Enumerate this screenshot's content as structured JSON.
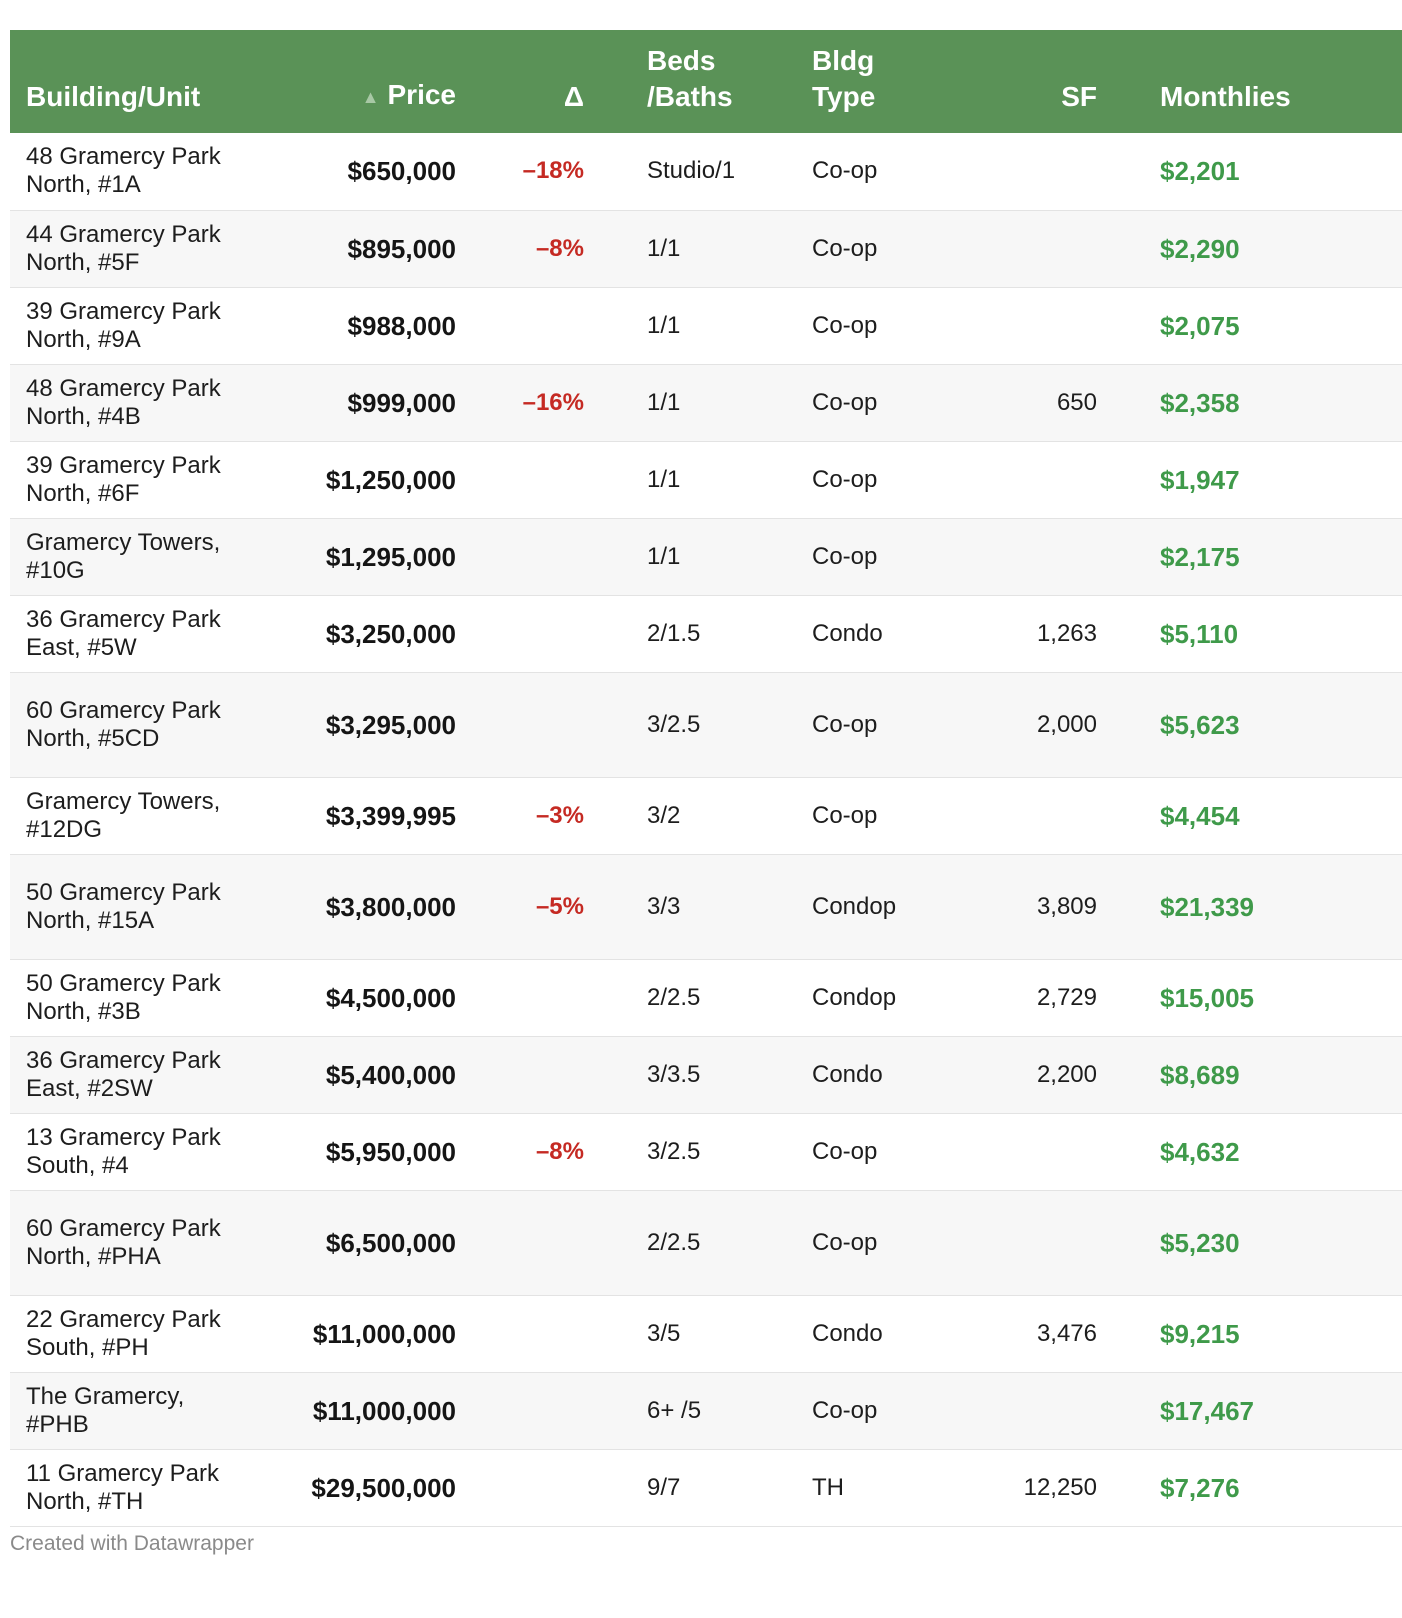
{
  "chart_data": {
    "type": "table",
    "columns": [
      "Building/Unit",
      "Price",
      "Δ",
      "Beds /Baths",
      "Bldg Type",
      "SF",
      "Monthlies"
    ],
    "sort": {
      "column": "Price",
      "direction": "ascending",
      "icon": "sort-ascending-icon"
    },
    "header_labels": {
      "building": "Building/Unit",
      "price": "Price",
      "delta": "Δ",
      "beds_line1": "Beds",
      "beds_line2": "/Baths",
      "type_line1": "Bldg",
      "type_line2": "Type",
      "sf": "SF",
      "monthlies": "Monthlies"
    },
    "rows": [
      {
        "building": "48 Gramercy Park North, #1A",
        "price": "$650,000",
        "delta": "–18%",
        "beds_baths": "Studio/1",
        "type": "Co-op",
        "sf": "",
        "monthlies": "$2,201"
      },
      {
        "building": "44 Gramercy Park North, #5F",
        "price": "$895,000",
        "delta": "–8%",
        "beds_baths": "1/1",
        "type": "Co-op",
        "sf": "",
        "monthlies": "$2,290"
      },
      {
        "building": "39 Gramercy Park North, #9A",
        "price": "$988,000",
        "delta": "",
        "beds_baths": "1/1",
        "type": "Co-op",
        "sf": "",
        "monthlies": "$2,075"
      },
      {
        "building": "48 Gramercy Park North, #4B",
        "price": "$999,000",
        "delta": "–16%",
        "beds_baths": "1/1",
        "type": "Co-op",
        "sf": "650",
        "monthlies": "$2,358"
      },
      {
        "building": "39 Gramercy Park North, #6F",
        "price": "$1,250,000",
        "delta": "",
        "beds_baths": "1/1",
        "type": "Co-op",
        "sf": "",
        "monthlies": "$1,947"
      },
      {
        "building": "Gramercy Towers, #10G",
        "price": "$1,295,000",
        "delta": "",
        "beds_baths": "1/1",
        "type": "Co-op",
        "sf": "",
        "monthlies": "$2,175"
      },
      {
        "building": "36 Gramercy Park East, #5W",
        "price": "$3,250,000",
        "delta": "",
        "beds_baths": "2/1.5",
        "type": "Condo",
        "sf": "1,263",
        "monthlies": "$5,110"
      },
      {
        "building": "60 Gramercy Park North, #5CD",
        "price": "$3,295,000",
        "delta": "",
        "beds_baths": "3/2.5",
        "type": "Co-op",
        "sf": "2,000",
        "monthlies": "$5,623"
      },
      {
        "building": "Gramercy Towers, #12DG",
        "price": "$3,399,995",
        "delta": "–3%",
        "beds_baths": "3/2",
        "type": "Co-op",
        "sf": "",
        "monthlies": "$4,454"
      },
      {
        "building": "50 Gramercy Park North, #15A",
        "price": "$3,800,000",
        "delta": "–5%",
        "beds_baths": "3/3",
        "type": "Condop",
        "sf": "3,809",
        "monthlies": "$21,339"
      },
      {
        "building": "50 Gramercy Park North, #3B",
        "price": "$4,500,000",
        "delta": "",
        "beds_baths": "2/2.5",
        "type": "Condop",
        "sf": "2,729",
        "monthlies": "$15,005"
      },
      {
        "building": "36 Gramercy Park East, #2SW",
        "price": "$5,400,000",
        "delta": "",
        "beds_baths": "3/3.5",
        "type": "Condo",
        "sf": "2,200",
        "monthlies": "$8,689"
      },
      {
        "building": "13 Gramercy Park South, #4",
        "price": "$5,950,000",
        "delta": "–8%",
        "beds_baths": "3/2.5",
        "type": "Co-op",
        "sf": "",
        "monthlies": "$4,632"
      },
      {
        "building": "60 Gramercy Park North, #PHA",
        "price": "$6,500,000",
        "delta": "",
        "beds_baths": "2/2.5",
        "type": "Co-op",
        "sf": "",
        "monthlies": "$5,230"
      },
      {
        "building": "22 Gramercy Park South, #PH",
        "price": "$11,000,000",
        "delta": "",
        "beds_baths": "3/5",
        "type": "Condo",
        "sf": "3,476",
        "monthlies": "$9,215"
      },
      {
        "building": "The Gramercy, #PHB",
        "price": "$11,000,000",
        "delta": "",
        "beds_baths": "6+ /5",
        "type": "Co-op",
        "sf": "",
        "monthlies": "$17,467"
      },
      {
        "building": "11 Gramercy Park North, #TH",
        "price": "$29,500,000",
        "delta": "",
        "beds_baths": "9/7",
        "type": "TH",
        "sf": "12,250",
        "monthlies": "$7,276"
      }
    ],
    "colors": {
      "header_bg": "#5a9257",
      "header_text": "#ffffff",
      "delta_text": "#c52a23",
      "monthlies_text": "#3f9a4a",
      "stripe_bg": "#f7f7f7"
    }
  },
  "footer": {
    "credit": "Created with Datawrapper"
  }
}
